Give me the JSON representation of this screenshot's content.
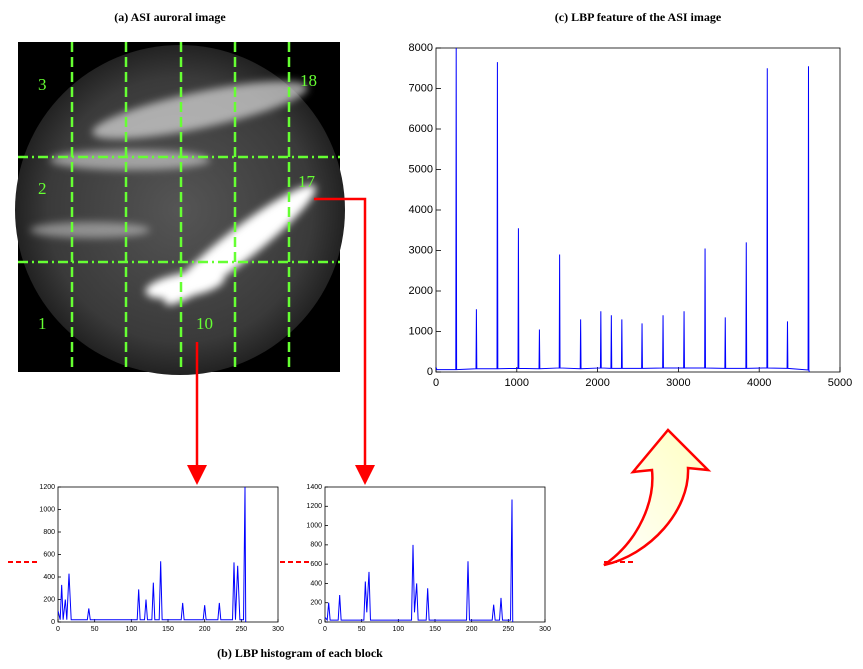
{
  "image": {
    "title": "(a) ASI auroral image",
    "block_labels": [
      "3",
      "18",
      "2",
      "17",
      "1",
      "10"
    ]
  },
  "caption": "(b) LBP histogram of each block",
  "chart_data": [
    {
      "type": "line",
      "title": "(c) LBP feature of the ASI image",
      "x": [
        0,
        10,
        245,
        250,
        255,
        495,
        500,
        505,
        755,
        760,
        765,
        1015,
        1020,
        1025,
        1275,
        1280,
        1285,
        1525,
        1530,
        1535,
        1785,
        1790,
        1795,
        2035,
        2040,
        2045,
        2165,
        2170,
        2175,
        2295,
        2300,
        2305,
        2545,
        2550,
        2555,
        2805,
        2810,
        2815,
        3065,
        3070,
        3075,
        3325,
        3330,
        3335,
        3575,
        3580,
        3585,
        3835,
        3840,
        3845,
        4095,
        4100,
        4105,
        4345,
        4350,
        4355,
        4605,
        4610,
        4615,
        4620
      ],
      "series": [
        {
          "color": "#0000ff",
          "values": [
            120,
            60,
            60,
            8000,
            60,
            80,
            1550,
            80,
            80,
            7650,
            80,
            90,
            3550,
            90,
            80,
            1050,
            80,
            100,
            2900,
            100,
            80,
            1300,
            80,
            100,
            1500,
            100,
            90,
            1400,
            90,
            90,
            1300,
            90,
            90,
            1200,
            90,
            100,
            1400,
            100,
            100,
            1500,
            100,
            100,
            3050,
            100,
            90,
            1350,
            90,
            90,
            3200,
            90,
            100,
            7500,
            100,
            90,
            1250,
            90,
            50,
            7550,
            50,
            0
          ]
        }
      ],
      "xlim": [
        0,
        5000
      ],
      "xticks": [
        0,
        1000,
        2000,
        3000,
        4000,
        5000
      ],
      "ylim": [
        0,
        8000
      ],
      "yticks": [
        0,
        1000,
        2000,
        3000,
        4000,
        5000,
        6000,
        7000,
        8000
      ]
    },
    {
      "type": "line",
      "x": [
        0,
        3,
        5,
        7,
        10,
        12,
        15,
        18,
        40,
        42,
        44,
        108,
        110,
        112,
        118,
        120,
        122,
        128,
        130,
        132,
        138,
        140,
        142,
        168,
        170,
        172,
        198,
        200,
        202,
        218,
        220,
        222,
        238,
        240,
        242,
        245,
        248,
        253,
        255,
        256
      ],
      "series": [
        {
          "color": "#0000ff",
          "values": [
            100,
            20,
            330,
            20,
            200,
            20,
            430,
            20,
            20,
            120,
            20,
            20,
            290,
            20,
            20,
            200,
            20,
            20,
            350,
            20,
            20,
            540,
            20,
            20,
            170,
            20,
            20,
            150,
            20,
            20,
            170,
            20,
            20,
            530,
            20,
            500,
            20,
            20,
            1200,
            0
          ]
        }
      ],
      "xlim": [
        0,
        300
      ],
      "xticks": [
        0,
        50,
        100,
        150,
        200,
        250,
        300
      ],
      "ylim": [
        0,
        1200
      ],
      "yticks": [
        0,
        200,
        400,
        600,
        800,
        1000,
        1200
      ]
    },
    {
      "type": "line",
      "x": [
        0,
        3,
        5,
        7,
        18,
        20,
        22,
        53,
        55,
        57,
        60,
        62,
        118,
        120,
        122,
        125,
        127,
        138,
        140,
        142,
        193,
        195,
        197,
        228,
        230,
        232,
        238,
        240,
        242,
        253,
        255,
        256
      ],
      "series": [
        {
          "color": "#0000ff",
          "values": [
            50,
            20,
            200,
            20,
            20,
            280,
            20,
            20,
            420,
            100,
            520,
            20,
            20,
            800,
            100,
            400,
            20,
            20,
            350,
            20,
            20,
            630,
            20,
            20,
            180,
            20,
            20,
            250,
            20,
            20,
            1270,
            0
          ]
        }
      ],
      "xlim": [
        0,
        300
      ],
      "xticks": [
        0,
        50,
        100,
        150,
        200,
        250,
        300
      ],
      "ylim": [
        0,
        1400
      ],
      "yticks": [
        0,
        200,
        400,
        600,
        800,
        1000,
        1200,
        1400
      ]
    }
  ]
}
